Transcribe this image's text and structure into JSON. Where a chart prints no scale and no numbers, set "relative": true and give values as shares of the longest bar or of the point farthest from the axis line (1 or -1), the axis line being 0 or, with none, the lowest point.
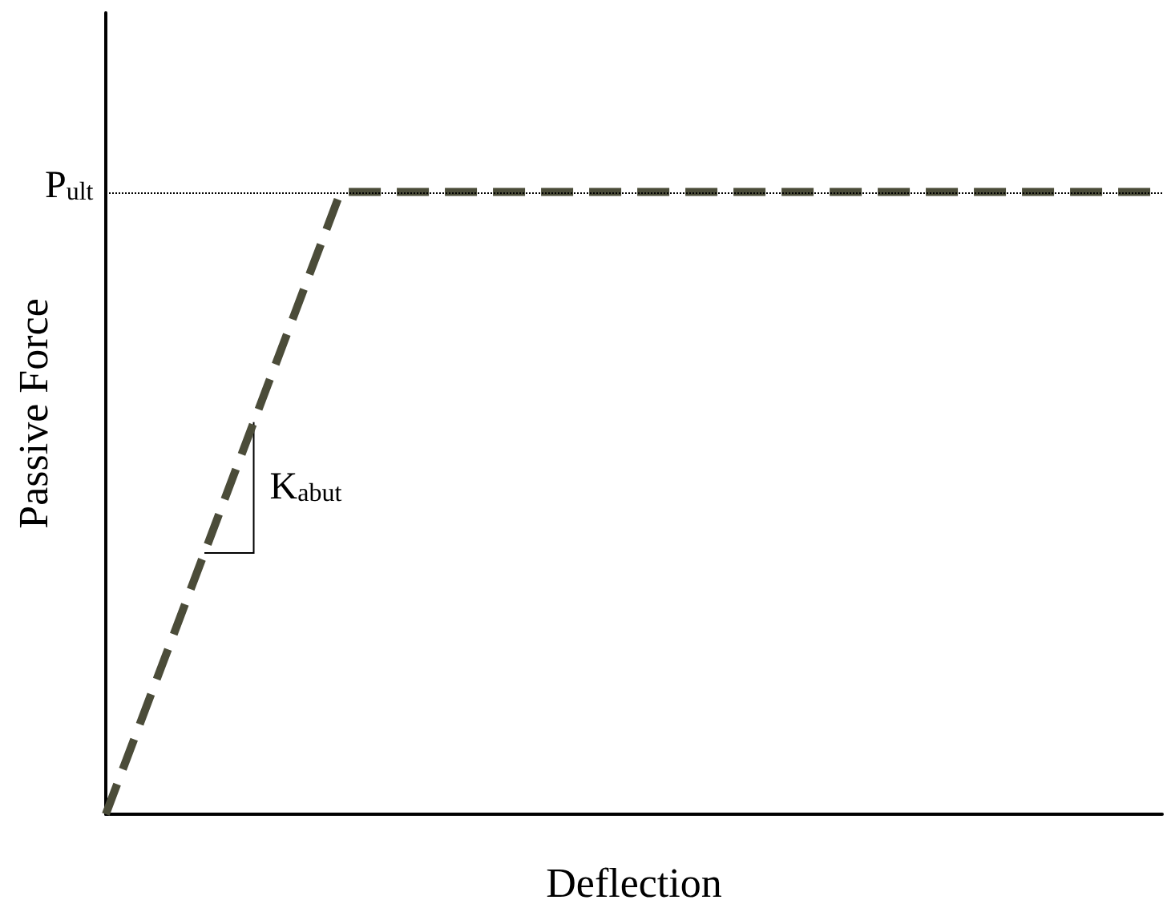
{
  "chart_data": {
    "type": "line",
    "relative": true,
    "xlabel": "Deflection",
    "ylabel": "Passive Force",
    "categories": [
      null,
      null,
      null,
      null,
      null,
      null,
      null,
      null,
      null,
      null
    ],
    "series": [
      {
        "color": "#4b4c39",
        "values": [
          0,
          0.5,
          1,
          1,
          1,
          1,
          1,
          1,
          1,
          1
        ]
      }
    ],
    "line_style": "dashed",
    "marker": "none",
    "ref_lines": [
      {
        "axis": "y",
        "value": 1,
        "label": "P$_{ult}$",
        "line_style": "dotted",
        "color": "#000000"
      }
    ],
    "annotations": [
      "K$_{abut}$"
    ],
    "grid": false
  }
}
